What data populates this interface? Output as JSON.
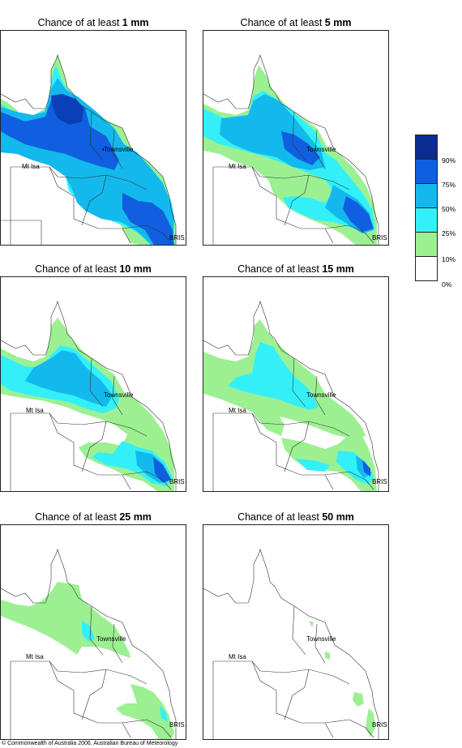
{
  "title_prefix": "Chance of at least",
  "panels": [
    {
      "amount": "1 mm"
    },
    {
      "amount": "5 mm"
    },
    {
      "amount": "10 mm"
    },
    {
      "amount": "15 mm"
    },
    {
      "amount": "25 mm"
    },
    {
      "amount": "50 mm"
    }
  ],
  "places": {
    "townsville": "Townsville",
    "mt_isa": "Mt Isa",
    "bris": "BRIS"
  },
  "legend": {
    "ticks": [
      "90%",
      "75%",
      "50%",
      "25%",
      "10%",
      "0%"
    ],
    "colors": [
      "#0a2b8f",
      "#0f5fe0",
      "#13b9ec",
      "#33f0f8",
      "#9cf092",
      "#ffffff"
    ]
  },
  "copyright": "© Commonwealth of Australia 2006, Australian Bureau of Meteorology"
}
